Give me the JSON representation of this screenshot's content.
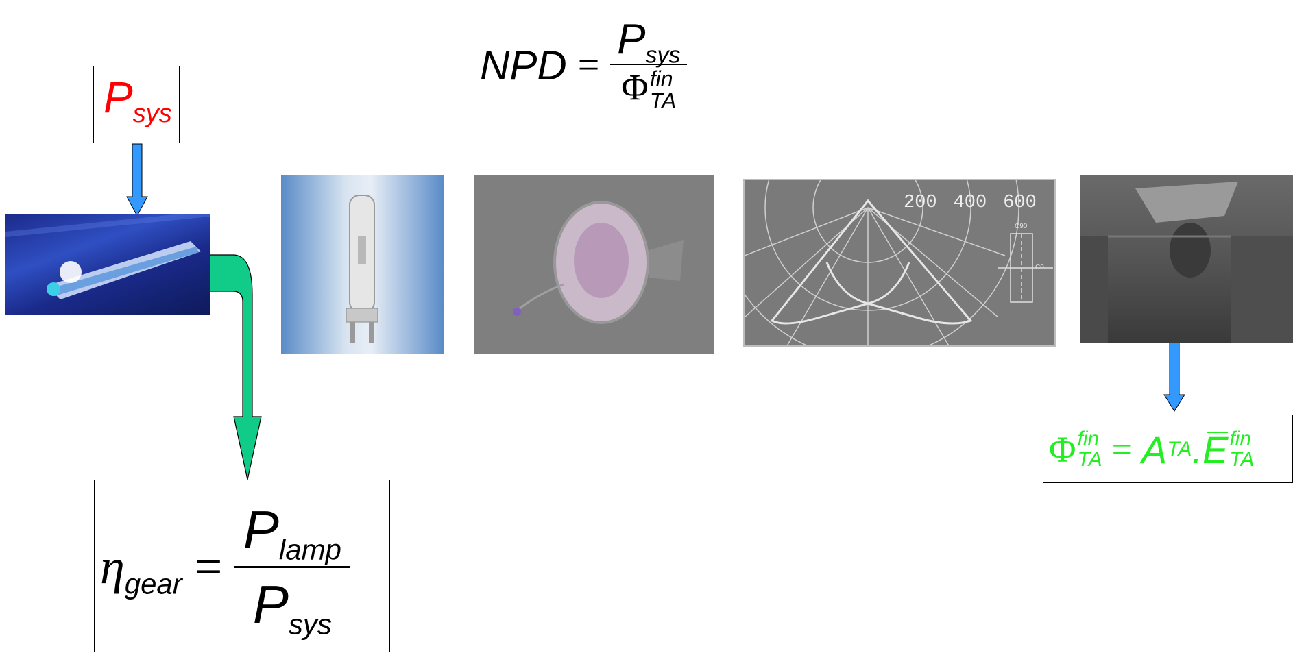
{
  "psys_box": {
    "symbol": "P",
    "sub": "sys",
    "color": "#ff0000"
  },
  "npd_formula": {
    "lhs": "NPD",
    "equals": "=",
    "num_symbol": "P",
    "num_sub": "sys",
    "den_symbol": "Φ",
    "den_sup": "fin",
    "den_sub": "TA"
  },
  "efficiency_formula": {
    "lhs_symbol": "η",
    "lhs_sub": "gear",
    "equals": "=",
    "num_symbol": "P",
    "num_sub": "lamp",
    "den_symbol": "P",
    "den_sub": "sys"
  },
  "flux_formula": {
    "lhs_symbol": "Φ",
    "lhs_sup": "fin",
    "lhs_sub": "TA",
    "equals": "=",
    "a_symbol": "A",
    "a_sub": "TA",
    "dot": ".",
    "e_symbol": "E",
    "e_sup": "fin",
    "e_sub": "TA",
    "color": "#22ee22"
  },
  "polar_chart": {
    "tick_labels": [
      "200",
      "400",
      "600"
    ],
    "c_labels": [
      "C90",
      "C0"
    ]
  },
  "images": [
    "fluorescent-luminaire",
    "metal-halide-lamp",
    "downlight-reflector",
    "polar-intensity-diagram",
    "room-photo"
  ],
  "colors": {
    "arrow_blue": "#3399ff",
    "arrow_green": "#11cc88"
  }
}
